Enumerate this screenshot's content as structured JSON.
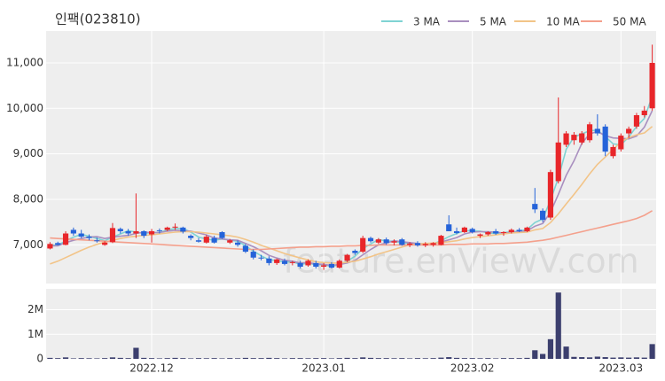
{
  "chart_data": {
    "type": "candlestick",
    "title": "인팩(023810)",
    "watermark": "feature.enViewV.com",
    "categories": [
      null,
      null,
      null,
      null,
      null,
      null,
      null,
      null,
      null,
      null,
      null,
      null,
      null,
      "2022.12",
      null,
      null,
      null,
      null,
      null,
      null,
      null,
      null,
      null,
      null,
      null,
      null,
      null,
      null,
      null,
      null,
      null,
      null,
      null,
      null,
      null,
      "2023.01",
      null,
      null,
      null,
      null,
      null,
      null,
      null,
      null,
      null,
      null,
      null,
      null,
      null,
      null,
      null,
      null,
      null,
      null,
      "2023.02",
      null,
      null,
      null,
      null,
      null,
      null,
      null,
      null,
      null,
      null,
      null,
      null,
      null,
      null,
      null,
      null,
      null,
      null,
      "2023.03",
      null,
      null,
      null,
      null
    ],
    "open": [
      6920,
      7040,
      7000,
      7330,
      7250,
      7180,
      7100,
      7000,
      7060,
      7350,
      7300,
      7250,
      7300,
      7230,
      7320,
      7330,
      7380,
      7380,
      7200,
      7100,
      7050,
      7150,
      7280,
      7050,
      7050,
      6980,
      6850,
      6720,
      6700,
      6600,
      6650,
      6600,
      6600,
      6550,
      6600,
      6520,
      6580,
      6500,
      6650,
      6870,
      6850,
      7150,
      7050,
      7120,
      7050,
      7120,
      7000,
      7040,
      6990,
      7000,
      7000,
      7450,
      7300,
      7280,
      7350,
      7200,
      7230,
      7300,
      7260,
      7280,
      7330,
      7300,
      7900,
      7750,
      7600,
      8400,
      9200,
      9300,
      9250,
      9300,
      9550,
      9600,
      8950,
      9100,
      9450,
      9600,
      9850,
      10000
    ],
    "high": [
      7060,
      7070,
      7300,
      7380,
      7330,
      7230,
      7160,
      7080,
      7480,
      7380,
      7350,
      8130,
      7320,
      7350,
      7360,
      7400,
      7470,
      7400,
      7230,
      7150,
      7220,
      7200,
      7300,
      7130,
      7100,
      7020,
      6900,
      6780,
      6750,
      6700,
      6700,
      6650,
      6650,
      6680,
      6650,
      6600,
      6620,
      6680,
      6800,
      6900,
      7200,
      7180,
      7150,
      7160,
      7120,
      7150,
      7060,
      7080,
      7060,
      7060,
      7220,
      7650,
      7380,
      7400,
      7380,
      7250,
      7300,
      7350,
      7300,
      7360,
      7370,
      7400,
      8250,
      7800,
      8650,
      10240,
      9500,
      9480,
      9500,
      9700,
      9870,
      9650,
      9200,
      9450,
      9600,
      9900,
      10050,
      11400
    ],
    "low": [
      6900,
      6990,
      6990,
      7200,
      7150,
      7100,
      7050,
      6980,
      7040,
      7250,
      7200,
      7150,
      7150,
      7050,
      7250,
      7300,
      7330,
      7250,
      7100,
      7050,
      7030,
      7030,
      7130,
      7020,
      6960,
      6820,
      6680,
      6660,
      6550,
      6560,
      6550,
      6550,
      6480,
      6520,
      6480,
      6450,
      6480,
      6480,
      6620,
      6780,
      6820,
      7050,
      7020,
      7000,
      6990,
      6980,
      6950,
      6960,
      6950,
      6960,
      6990,
      7300,
      7230,
      7260,
      7250,
      7150,
      7200,
      7220,
      7200,
      7250,
      7280,
      7280,
      7700,
      7500,
      7550,
      8350,
      9150,
      9200,
      9200,
      9250,
      9400,
      8950,
      8900,
      9050,
      9350,
      9550,
      9800,
      9950
    ],
    "close": [
      7020,
      7000,
      7250,
      7250,
      7180,
      7150,
      7080,
      7050,
      7370,
      7300,
      7250,
      7300,
      7200,
      7300,
      7300,
      7380,
      7400,
      7290,
      7150,
      7070,
      7180,
      7050,
      7150,
      7100,
      7000,
      6850,
      6720,
      6700,
      6600,
      6680,
      6580,
      6620,
      6520,
      6650,
      6520,
      6550,
      6500,
      6650,
      6780,
      6820,
      7150,
      7080,
      7120,
      7040,
      7080,
      7000,
      7030,
      6990,
      7020,
      7040,
      7200,
      7300,
      7260,
      7380,
      7280,
      7230,
      7280,
      7250,
      7280,
      7330,
      7300,
      7380,
      7780,
      7550,
      8600,
      9250,
      9450,
      9420,
      9450,
      9650,
      9450,
      9050,
      9150,
      9400,
      9550,
      9850,
      9950,
      11000
    ],
    "up_color": "#e8262a",
    "down_color": "#2563d9",
    "series": [
      {
        "name": "3 MA",
        "color": "#7fd3d3",
        "values": [
          7000,
          6990,
          7090,
          7170,
          7230,
          7190,
          7140,
          7090,
          7170,
          7240,
          7310,
          7280,
          7250,
          7270,
          7270,
          7330,
          7360,
          7360,
          7280,
          7170,
          7130,
          7100,
          7130,
          7100,
          7080,
          6980,
          6860,
          6760,
          6670,
          6660,
          6620,
          6630,
          6570,
          6600,
          6560,
          6570,
          6520,
          6570,
          6640,
          6750,
          6920,
          7020,
          7120,
          7080,
          7080,
          7040,
          7040,
          7010,
          7010,
          7020,
          7090,
          7180,
          7250,
          7310,
          7310,
          7300,
          7260,
          7250,
          7270,
          7290,
          7300,
          7340,
          7490,
          7570,
          7980,
          8470,
          9100,
          9370,
          9440,
          9510,
          9520,
          9380,
          9220,
          9200,
          9370,
          9600,
          9780,
          10270
        ]
      },
      {
        "name": "5 MA",
        "color": "#a98fbf",
        "values": [
          6980,
          6980,
          7050,
          7100,
          7140,
          7170,
          7180,
          7140,
          7170,
          7190,
          7210,
          7250,
          7280,
          7270,
          7270,
          7300,
          7320,
          7310,
          7300,
          7260,
          7220,
          7150,
          7130,
          7110,
          7100,
          7030,
          6960,
          6870,
          6770,
          6710,
          6660,
          6640,
          6600,
          6610,
          6580,
          6570,
          6550,
          6570,
          6600,
          6660,
          6780,
          6900,
          7000,
          7040,
          7090,
          7070,
          7050,
          7030,
          7020,
          7020,
          7060,
          7110,
          7160,
          7240,
          7280,
          7290,
          7290,
          7280,
          7260,
          7270,
          7290,
          7310,
          7410,
          7470,
          7720,
          8110,
          8530,
          8850,
          9230,
          9440,
          9490,
          9400,
          9350,
          9340,
          9330,
          9390,
          9590,
          9950
        ]
      },
      {
        "name": "10 MA",
        "color": "#f2c488",
        "values": [
          6580,
          6640,
          6720,
          6800,
          6880,
          6950,
          7010,
          7060,
          7100,
          7140,
          7170,
          7190,
          7210,
          7220,
          7240,
          7260,
          7280,
          7290,
          7290,
          7280,
          7260,
          7240,
          7220,
          7200,
          7170,
          7120,
          7060,
          6990,
          6930,
          6870,
          6810,
          6760,
          6710,
          6670,
          6630,
          6610,
          6600,
          6600,
          6620,
          6640,
          6690,
          6740,
          6800,
          6850,
          6900,
          6950,
          7000,
          7020,
          7030,
          7040,
          7050,
          7070,
          7090,
          7130,
          7160,
          7180,
          7200,
          7220,
          7240,
          7260,
          7270,
          7280,
          7330,
          7360,
          7490,
          7680,
          7900,
          8110,
          8330,
          8560,
          8770,
          8930,
          9100,
          9260,
          9360,
          9420,
          9460,
          9600
        ]
      },
      {
        "name": "50 MA",
        "color": "#f4a08c",
        "values": [
          7150,
          7140,
          7130,
          7120,
          7110,
          7100,
          7090,
          7080,
          7070,
          7060,
          7050,
          7040,
          7030,
          7020,
          7010,
          7000,
          6990,
          6980,
          6970,
          6960,
          6950,
          6940,
          6930,
          6920,
          6910,
          6900,
          6900,
          6900,
          6910,
          6920,
          6930,
          6940,
          6950,
          6950,
          6960,
          6960,
          6970,
          6970,
          6980,
          6980,
          6990,
          6990,
          7000,
          7000,
          7000,
          7000,
          7000,
          7000,
          7000,
          7000,
          7000,
          7010,
          7010,
          7010,
          7020,
          7020,
          7020,
          7030,
          7030,
          7040,
          7050,
          7060,
          7080,
          7100,
          7130,
          7170,
          7210,
          7250,
          7290,
          7330,
          7370,
          7410,
          7450,
          7490,
          7530,
          7580,
          7650,
          7750
        ]
      }
    ],
    "ylim": [
      6150,
      11700
    ],
    "yticks": [
      {
        "value": 7000,
        "label": "7,000"
      },
      {
        "value": 8000,
        "label": "8,000"
      },
      {
        "value": 9000,
        "label": "9,000"
      },
      {
        "value": 10000,
        "label": "10,000"
      },
      {
        "value": 11000,
        "label": "11,000"
      }
    ],
    "grid": true,
    "volume": {
      "color": "#3c3f6e",
      "values": [
        40000,
        30000,
        60000,
        20000,
        30000,
        25000,
        20000,
        30000,
        60000,
        40000,
        30000,
        450000,
        40000,
        30000,
        20000,
        30000,
        40000,
        30000,
        20000,
        30000,
        25000,
        30000,
        20000,
        30000,
        25000,
        40000,
        30000,
        30000,
        40000,
        30000,
        20000,
        30000,
        30000,
        25000,
        30000,
        30000,
        20000,
        30000,
        40000,
        30000,
        60000,
        40000,
        30000,
        30000,
        25000,
        30000,
        20000,
        30000,
        25000,
        30000,
        50000,
        70000,
        40000,
        30000,
        30000,
        25000,
        30000,
        20000,
        30000,
        30000,
        30000,
        40000,
        350000,
        200000,
        800000,
        2700000,
        500000,
        80000,
        70000,
        60000,
        90000,
        70000,
        50000,
        60000,
        50000,
        60000,
        50000,
        600000
      ],
      "ylim": [
        0,
        2850000
      ],
      "yticks": [
        0,
        {
          "value": 1000000,
          "label": "1M"
        },
        {
          "value": 2000000,
          "label": "2M"
        }
      ]
    }
  }
}
